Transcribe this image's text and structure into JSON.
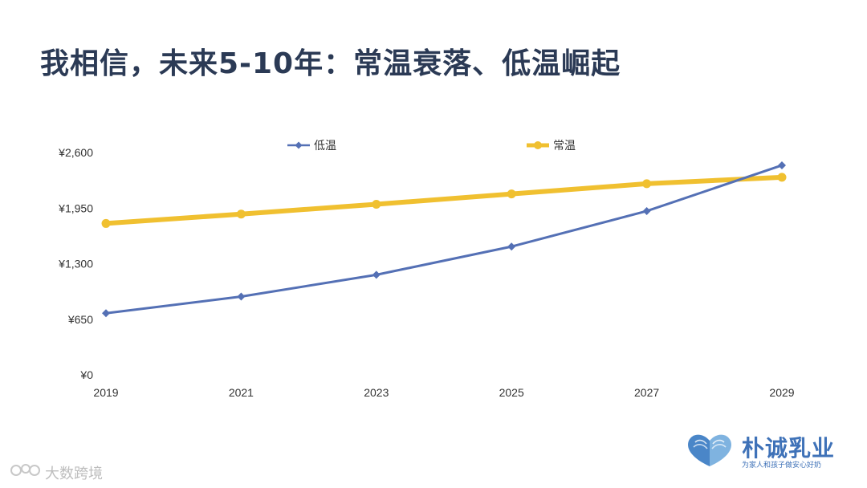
{
  "page": {
    "title": "我相信，未来5-10年：常温衰落、低温崛起"
  },
  "brand": {
    "name": "朴诚乳业",
    "slogan": "为家人和孩子做安心好奶"
  },
  "watermark": {
    "text": "大数跨境"
  },
  "chart_data": {
    "type": "line",
    "title": "",
    "xlabel": "",
    "ylabel": "",
    "categories": [
      "2019",
      "2021",
      "2023",
      "2025",
      "2027",
      "2029"
    ],
    "ylim": [
      0,
      2600
    ],
    "yticks": [
      0,
      650,
      1300,
      1950,
      2600
    ],
    "ytick_labels": [
      "¥0",
      "¥650",
      "¥1,300",
      "¥1,950",
      "¥2,600"
    ],
    "grid": false,
    "legend_position": "top",
    "series": [
      {
        "name": "低温",
        "values": [
          720,
          915,
          1170,
          1500,
          1915,
          2450
        ],
        "color": "#5470b5",
        "marker": "diamond"
      },
      {
        "name": "常温",
        "values": [
          1770,
          1880,
          1995,
          2115,
          2235,
          2310
        ],
        "color": "#f0c030",
        "marker": "circle"
      }
    ]
  }
}
